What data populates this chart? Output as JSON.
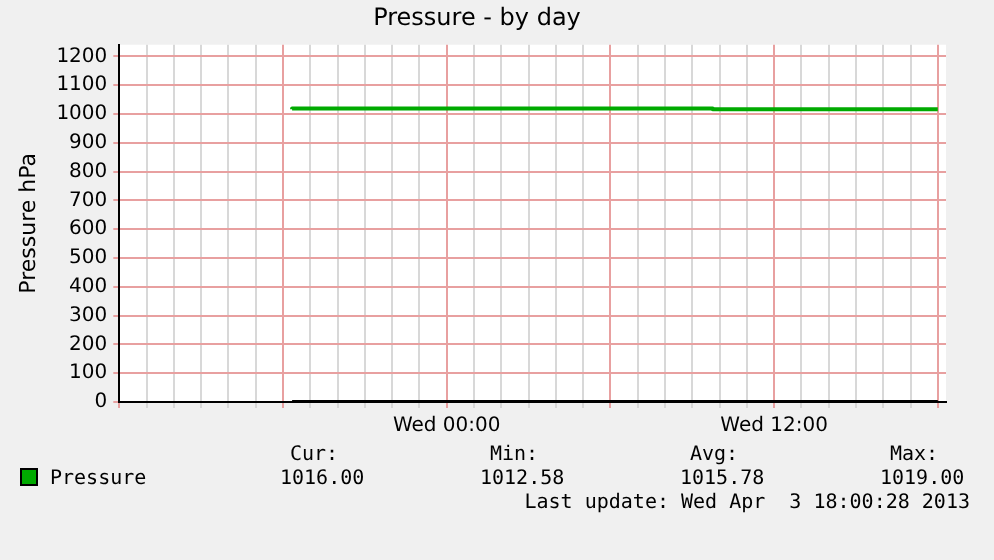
{
  "chart_data": {
    "type": "step",
    "title": "Pressure - by day",
    "ylabel": "Pressure hPa",
    "xlim": [
      "2013-04-02T12:00",
      "2013-04-03T18:18"
    ],
    "xticks": [
      {
        "value": "2013-04-02T12:00",
        "label": null
      },
      {
        "value": "2013-04-02T13:00",
        "label": null
      },
      {
        "value": "2013-04-02T14:00",
        "label": null
      },
      {
        "value": "2013-04-02T15:00",
        "label": null
      },
      {
        "value": "2013-04-02T16:00",
        "label": null
      },
      {
        "value": "2013-04-02T17:00",
        "label": null
      },
      {
        "value": "2013-04-02T18:00",
        "label": null
      },
      {
        "value": "2013-04-02T19:00",
        "label": null
      },
      {
        "value": "2013-04-02T20:00",
        "label": null
      },
      {
        "value": "2013-04-02T21:00",
        "label": null
      },
      {
        "value": "2013-04-02T22:00",
        "label": null
      },
      {
        "value": "2013-04-02T23:00",
        "label": null
      },
      {
        "value": "2013-04-03T00:00",
        "label": "Wed 00:00"
      },
      {
        "value": "2013-04-03T01:00",
        "label": null
      },
      {
        "value": "2013-04-03T02:00",
        "label": null
      },
      {
        "value": "2013-04-03T03:00",
        "label": null
      },
      {
        "value": "2013-04-03T04:00",
        "label": null
      },
      {
        "value": "2013-04-03T05:00",
        "label": null
      },
      {
        "value": "2013-04-03T06:00",
        "label": null
      },
      {
        "value": "2013-04-03T07:00",
        "label": null
      },
      {
        "value": "2013-04-03T08:00",
        "label": null
      },
      {
        "value": "2013-04-03T09:00",
        "label": null
      },
      {
        "value": "2013-04-03T10:00",
        "label": null
      },
      {
        "value": "2013-04-03T11:00",
        "label": null
      },
      {
        "value": "2013-04-03T12:00",
        "label": "Wed 12:00"
      },
      {
        "value": "2013-04-03T13:00",
        "label": null
      },
      {
        "value": "2013-04-03T14:00",
        "label": null
      },
      {
        "value": "2013-04-03T15:00",
        "label": null
      },
      {
        "value": "2013-04-03T16:00",
        "label": null
      },
      {
        "value": "2013-04-03T17:00",
        "label": null
      },
      {
        "value": "2013-04-03T18:00",
        "label": null
      }
    ],
    "ylim": [
      0,
      1240
    ],
    "yticks": [
      0,
      100,
      200,
      300,
      400,
      500,
      600,
      700,
      800,
      900,
      1000,
      1100,
      1200
    ],
    "grid": true,
    "legend": "bottom left",
    "marker": "none",
    "line_style": "solid",
    "series": [
      {
        "name": "Pressure",
        "color": "#00aa00",
        "x": [
          "2013-04-02T18:20",
          "2013-04-03T09:45",
          "2013-04-03T11:40",
          "2013-04-03T18:00"
        ],
        "values": [
          1016,
          1019,
          1016,
          1016
        ]
      },
      {
        "color": "#000000",
        "x": [
          "2013-04-02T18:20",
          "2013-04-03T18:00"
        ],
        "values": [
          0,
          0
        ]
      }
    ],
    "annotations": [
      "Cur:",
      "Min:",
      "Avg:",
      "Max:",
      "1016.00",
      "1012.58",
      "1015.78",
      "1019.00",
      "Last update: Wed Apr  3 18:00:28 2013"
    ]
  }
}
